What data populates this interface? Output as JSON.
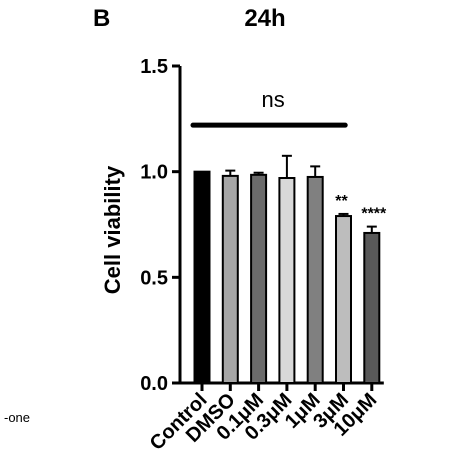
{
  "panel_letter": "B",
  "side_note": "-one",
  "colors": {
    "control": "#000000",
    "dmso": "#a6a6a6",
    "c01": "#6b6b6b",
    "c03": "#d9d9d9",
    "c1": "#808080",
    "c3": "#bdbdbd",
    "c10": "#595959"
  },
  "chart_data": {
    "type": "bar",
    "title": "24h",
    "xlabel": "",
    "ylabel": "Cell viability",
    "ylim": [
      0,
      1.5
    ],
    "yticks": [
      "0.0",
      "0.5",
      "1.0",
      "1.5"
    ],
    "categories": [
      "Control",
      "DMSO",
      "0.1μM",
      "0.3μM",
      "1μM",
      "3μM",
      "10μM"
    ],
    "values": [
      1.0,
      0.98,
      0.985,
      0.97,
      0.975,
      0.79,
      0.71
    ],
    "errors": [
      0.0,
      0.025,
      0.01,
      0.105,
      0.05,
      0.01,
      0.03
    ],
    "significance": [
      "",
      "",
      "",
      "",
      "",
      "**",
      "****"
    ],
    "bracket_label": "ns",
    "bracket_y": 1.22,
    "bracket_span": [
      "Control",
      "1μM"
    ],
    "grid": false,
    "legend": "none"
  }
}
